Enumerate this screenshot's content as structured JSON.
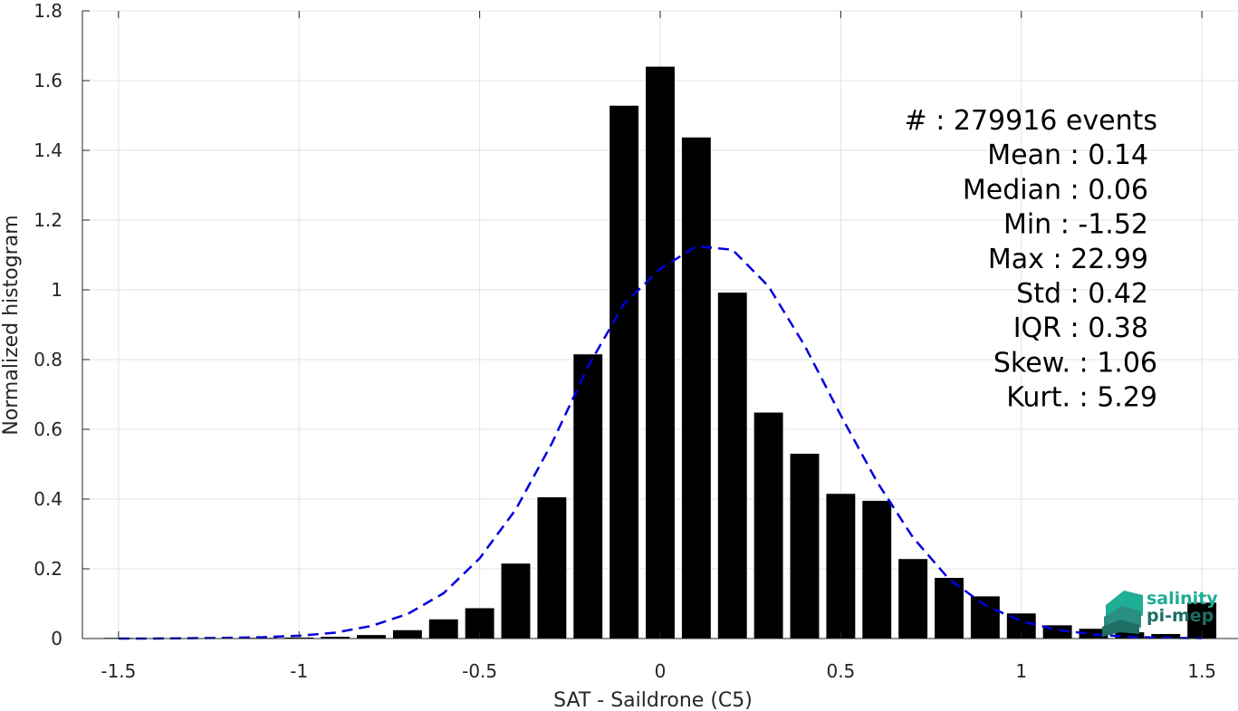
{
  "chart_data": {
    "type": "bar",
    "xlabel": "SAT - Saildrone (C5)",
    "ylabel": "Normalized histogram",
    "xlim": [
      -1.6,
      1.6
    ],
    "ylim": [
      0,
      1.8
    ],
    "grid": true,
    "bin_width": 0.1,
    "xticks": [
      -1.5,
      -1,
      -0.5,
      0,
      0.5,
      1,
      1.5
    ],
    "xtick_labels": [
      "-1.5",
      "-1",
      "-0.5",
      "0",
      "0.5",
      "1",
      "1.5"
    ],
    "yticks": [
      0,
      0.2,
      0.4,
      0.6,
      0.8,
      1,
      1.2,
      1.4,
      1.6,
      1.8
    ],
    "ytick_labels": [
      "0",
      "0.2",
      "0.4",
      "0.6",
      "0.8",
      "1",
      "1.2",
      "1.4",
      "1.6",
      "1.8"
    ],
    "bars": {
      "x": [
        -1.5,
        -1.4,
        -1.3,
        -1.2,
        -1.1,
        -1.0,
        -0.9,
        -0.8,
        -0.7,
        -0.6,
        -0.5,
        -0.4,
        -0.3,
        -0.2,
        -0.1,
        0.0,
        0.1,
        0.2,
        0.3,
        0.4,
        0.5,
        0.6,
        0.7,
        0.8,
        0.9,
        1.0,
        1.1,
        1.2,
        1.3,
        1.4,
        1.5
      ],
      "values": [
        0.002,
        0.001,
        0.001,
        0.001,
        0.002,
        0.003,
        0.005,
        0.01,
        0.024,
        0.055,
        0.087,
        0.215,
        0.405,
        0.815,
        1.528,
        1.64,
        1.437,
        0.992,
        0.648,
        0.53,
        0.415,
        0.395,
        0.228,
        0.174,
        0.121,
        0.072,
        0.038,
        0.028,
        0.018,
        0.013,
        0.103
      ],
      "color": "#000000"
    },
    "fit_curve": {
      "style": "dashed",
      "color": "#0000dd",
      "x": [
        -1.5,
        -1.4,
        -1.3,
        -1.2,
        -1.1,
        -1.0,
        -0.9,
        -0.8,
        -0.7,
        -0.6,
        -0.5,
        -0.4,
        -0.3,
        -0.2,
        -0.1,
        0.0,
        0.1,
        0.2,
        0.3,
        0.4,
        0.5,
        0.6,
        0.7,
        0.8,
        0.9,
        1.0,
        1.1,
        1.2,
        1.3,
        1.4,
        1.5
      ],
      "y": [
        0.0,
        0.0,
        0.001,
        0.002,
        0.004,
        0.008,
        0.017,
        0.036,
        0.07,
        0.13,
        0.23,
        0.37,
        0.56,
        0.78,
        0.96,
        1.06,
        1.125,
        1.115,
        1.01,
        0.84,
        0.64,
        0.45,
        0.29,
        0.17,
        0.095,
        0.05,
        0.025,
        0.012,
        0.005,
        0.002,
        0.001
      ]
    },
    "stats": [
      "#  : 279916 events",
      "Mean : 0.14",
      "Median : 0.06",
      "Min : -1.52",
      "Max : 22.99",
      "Std : 0.42",
      "IQR : 0.38",
      "Skew. : 1.06",
      "Kurt. : 5.29"
    ]
  },
  "logo": {
    "line1": "salinity",
    "line2": "pi-mep",
    "color_top": "#1fae96",
    "color_bottom": "#1e6f66"
  }
}
